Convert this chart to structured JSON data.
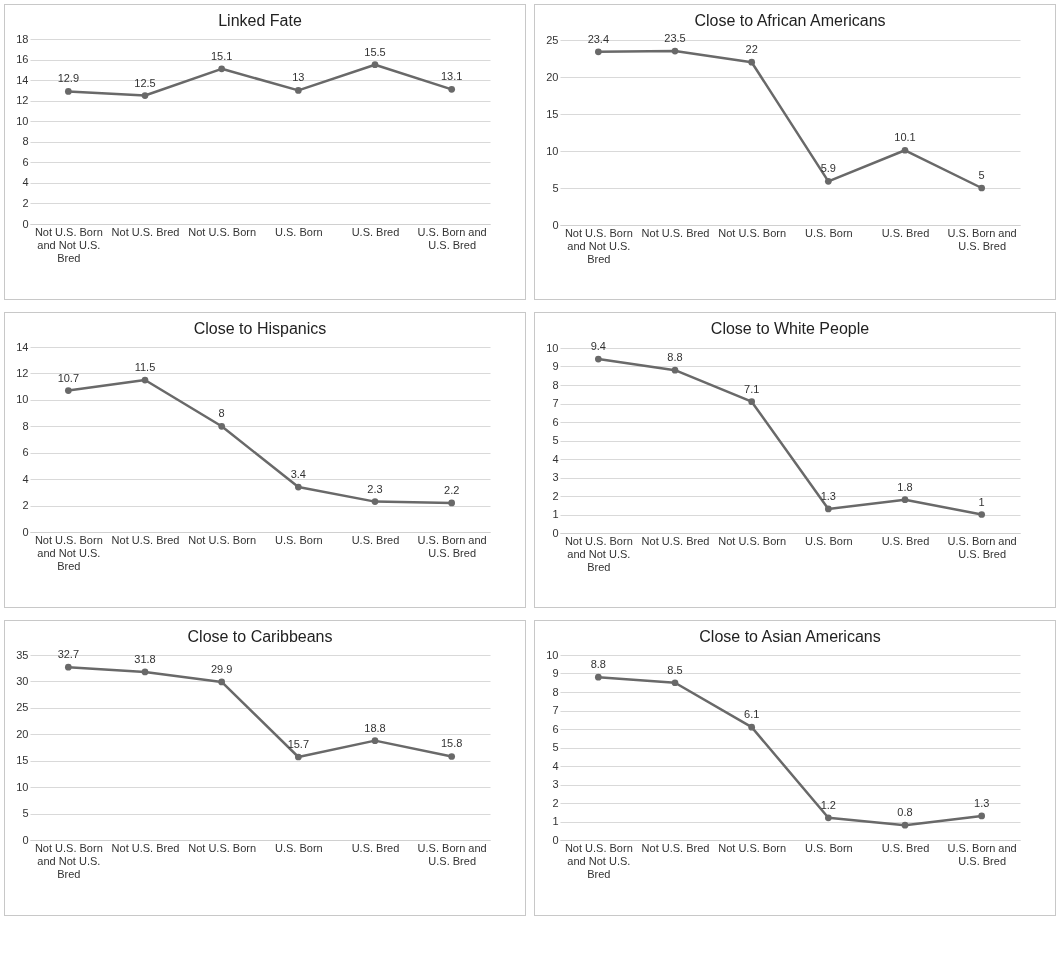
{
  "chart_data": [
    {
      "type": "line",
      "title": "Linked Fate",
      "categories": [
        "Not U.S. Born and Not U.S. Bred",
        "Not U.S. Bred",
        "Not U.S. Born",
        "U.S. Born",
        "U.S. Bred",
        "U.S. Born and U.S. Bred"
      ],
      "series": [
        {
          "color": "#696969",
          "values": [
            12.9,
            12.5,
            15.1,
            13,
            15.5,
            13.1
          ]
        }
      ],
      "ylim": [
        0,
        18
      ],
      "yticks": [
        0,
        2,
        4,
        6,
        8,
        10,
        12,
        14,
        16,
        18
      ],
      "grid": "y",
      "marker": "circle",
      "data_labels": true
    },
    {
      "type": "line",
      "title": "Close to African Americans",
      "categories": [
        "Not U.S. Born and Not U.S. Bred",
        "Not U.S. Bred",
        "Not U.S. Born",
        "U.S. Born",
        "U.S. Bred",
        "U.S. Born and U.S. Bred"
      ],
      "series": [
        {
          "color": "#696969",
          "values": [
            23.4,
            23.5,
            22,
            5.9,
            10.1,
            5
          ]
        }
      ],
      "ylim": [
        0,
        25
      ],
      "yticks": [
        0,
        5,
        10,
        15,
        20,
        25
      ],
      "grid": "y",
      "marker": "circle",
      "data_labels": true
    },
    {
      "type": "line",
      "title": "Close to Hispanics",
      "categories": [
        "Not U.S. Born and Not U.S. Bred",
        "Not U.S. Bred",
        "Not U.S. Born",
        "U.S. Born",
        "U.S. Bred",
        "U.S. Born and U.S. Bred"
      ],
      "series": [
        {
          "color": "#696969",
          "values": [
            10.7,
            11.5,
            8,
            3.4,
            2.3,
            2.2
          ]
        }
      ],
      "ylim": [
        0,
        14
      ],
      "yticks": [
        0,
        2,
        4,
        6,
        8,
        10,
        12,
        14
      ],
      "grid": "y",
      "marker": "circle",
      "data_labels": true
    },
    {
      "type": "line",
      "title": "Close to White People",
      "categories": [
        "Not U.S. Born and Not U.S. Bred",
        "Not U.S. Bred",
        "Not U.S. Born",
        "U.S. Born",
        "U.S. Bred",
        "U.S. Born and U.S. Bred"
      ],
      "series": [
        {
          "color": "#696969",
          "values": [
            9.4,
            8.8,
            7.1,
            1.3,
            1.8,
            1
          ]
        }
      ],
      "ylim": [
        0,
        10
      ],
      "yticks": [
        0,
        1,
        2,
        3,
        4,
        5,
        6,
        7,
        8,
        9,
        10
      ],
      "grid": "y",
      "marker": "circle",
      "data_labels": true
    },
    {
      "type": "line",
      "title": "Close to Caribbeans",
      "categories": [
        "Not U.S. Born and Not U.S. Bred",
        "Not U.S. Bred",
        "Not U.S. Born",
        "U.S. Born",
        "U.S. Bred",
        "U.S. Born and U.S. Bred"
      ],
      "series": [
        {
          "color": "#696969",
          "values": [
            32.7,
            31.8,
            29.9,
            15.7,
            18.8,
            15.8
          ]
        }
      ],
      "ylim": [
        0,
        35
      ],
      "yticks": [
        0,
        5,
        10,
        15,
        20,
        25,
        30,
        35
      ],
      "grid": "y",
      "marker": "circle",
      "data_labels": true
    },
    {
      "type": "line",
      "title": "Close to Asian Americans",
      "categories": [
        "Not U.S. Born and Not U.S. Bred",
        "Not U.S. Bred",
        "Not U.S. Born",
        "U.S. Born",
        "U.S. Bred",
        "U.S. Born and U.S. Bred"
      ],
      "series": [
        {
          "color": "#696969",
          "values": [
            8.8,
            8.5,
            6.1,
            1.2,
            0.8,
            1.3
          ]
        }
      ],
      "ylim": [
        0,
        10
      ],
      "yticks": [
        0,
        1,
        2,
        3,
        4,
        5,
        6,
        7,
        8,
        9,
        10
      ],
      "grid": "y",
      "marker": "circle",
      "data_labels": true
    }
  ]
}
